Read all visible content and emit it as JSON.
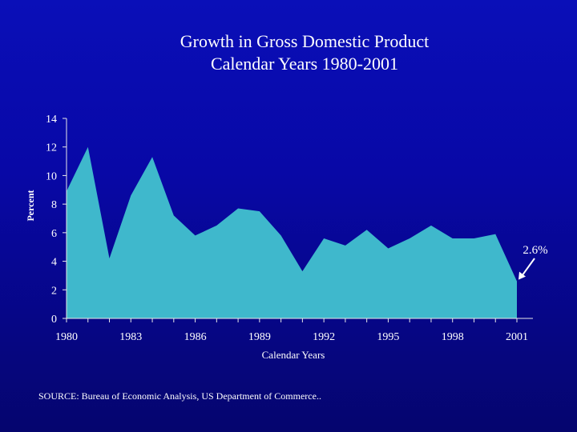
{
  "chart_data": {
    "type": "area",
    "title": "Growth in Gross Domestic Product",
    "subtitle": "Calendar Years 1980-2001",
    "xlabel": "Calendar Years",
    "ylabel": "Percent",
    "x": [
      1980,
      1981,
      1982,
      1983,
      1984,
      1985,
      1986,
      1987,
      1988,
      1989,
      1990,
      1991,
      1992,
      1993,
      1994,
      1995,
      1996,
      1997,
      1998,
      1999,
      2000,
      2001
    ],
    "series": [
      {
        "values": [
          8.9,
          12.0,
          4.2,
          8.6,
          11.3,
          7.2,
          5.8,
          6.5,
          7.7,
          7.5,
          5.8,
          3.3,
          5.6,
          5.1,
          6.2,
          4.9,
          5.6,
          6.5,
          5.6,
          5.6,
          5.9,
          2.6
        ]
      }
    ],
    "xticks": [
      "1980",
      "1983",
      "1986",
      "1989",
      "1992",
      "1995",
      "1998",
      "2001"
    ],
    "yticks": [
      "0",
      "2",
      "4",
      "6",
      "8",
      "10",
      "12",
      "14"
    ],
    "ylim": [
      0,
      14
    ],
    "xlim": [
      1980,
      2001
    ],
    "grid": false,
    "annotation": {
      "text": "2.6%",
      "x": 2001,
      "y": 2.6
    },
    "fill_color": "#3fb8cc",
    "axis_color": "#e8e8e8"
  },
  "source_text": "SOURCE: Bureau of Economic Analysis, US Department of Commerce.."
}
